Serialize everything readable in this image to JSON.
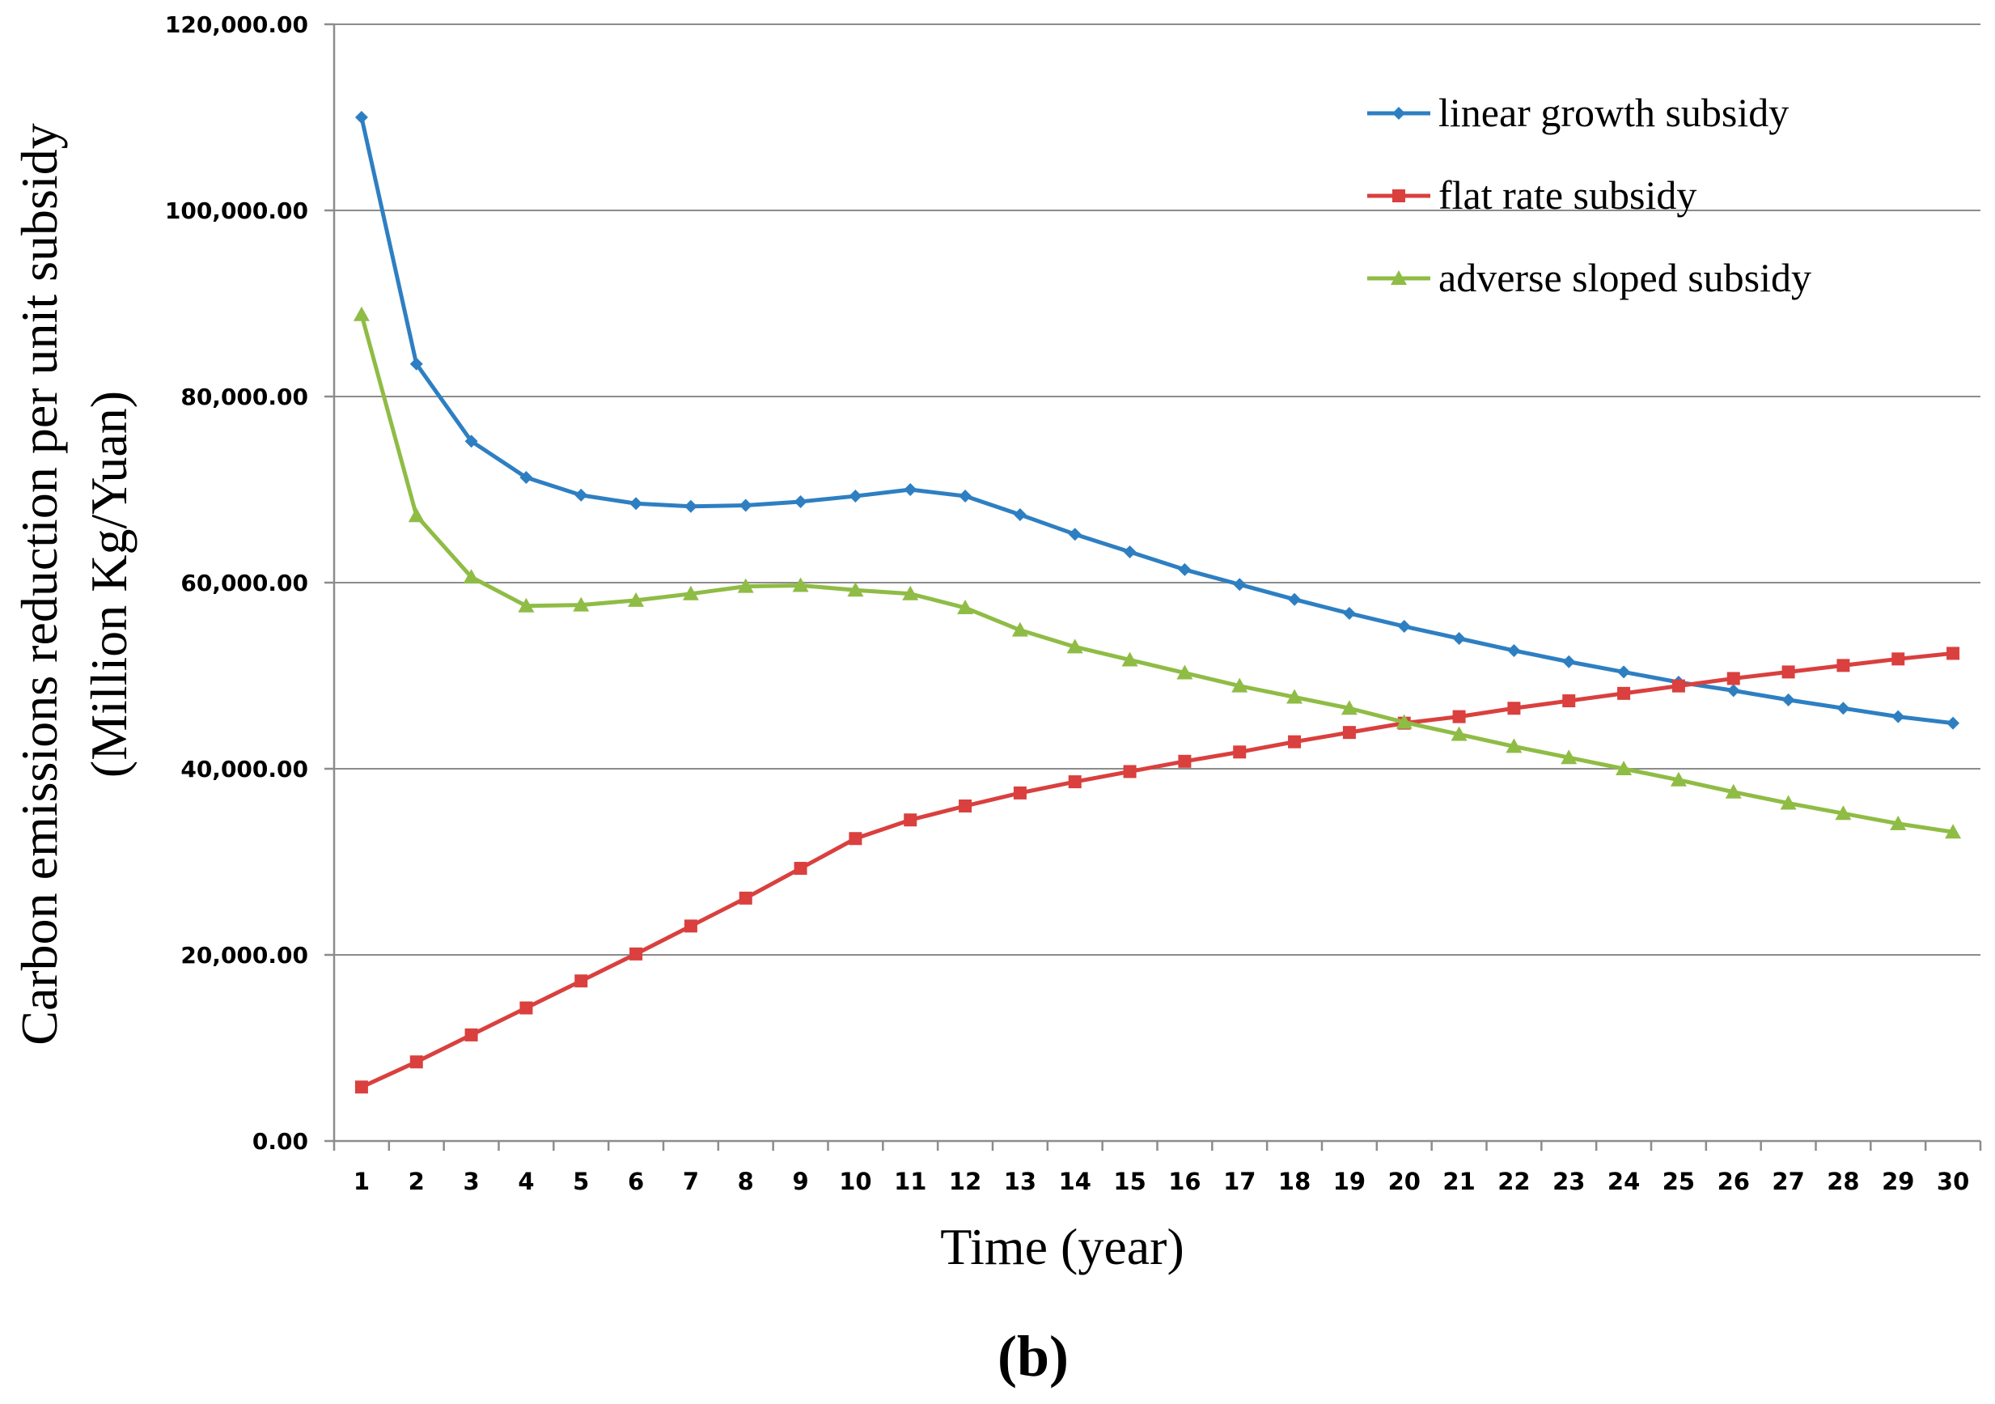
{
  "chart_data": {
    "type": "line",
    "title": "",
    "panel_label": "(b)",
    "xlabel": "Time (year)",
    "ylabel_line1": "Carbon emissions reduction per unit subsidy",
    "ylabel_line2": "(Million Kg/Yuan)",
    "x": [
      1,
      2,
      3,
      4,
      5,
      6,
      7,
      8,
      9,
      10,
      11,
      12,
      13,
      14,
      15,
      16,
      17,
      18,
      19,
      20,
      21,
      22,
      23,
      24,
      25,
      26,
      27,
      28,
      29,
      30
    ],
    "xlim": [
      0.5,
      30.5
    ],
    "ylim": [
      0,
      120000
    ],
    "yticks": [
      0,
      20000,
      40000,
      60000,
      80000,
      100000,
      120000
    ],
    "ytick_labels": [
      "0.00",
      "20,000.00",
      "40,000.00",
      "60,000.00",
      "80,000.00",
      "100,000.00",
      "120,000.00"
    ],
    "grid": "horizontal",
    "legend_position": "top-right",
    "series": [
      {
        "name": "linear growth subsidy",
        "color": "#2e7fc2",
        "marker": "diamond",
        "values": [
          110000,
          83500,
          75200,
          71300,
          69400,
          68500,
          68200,
          68300,
          68700,
          69300,
          70000,
          69300,
          67300,
          65200,
          63300,
          61400,
          59800,
          58200,
          56700,
          55300,
          54000,
          52700,
          51500,
          50400,
          49300,
          48400,
          47400,
          46500,
          45600,
          44900
        ]
      },
      {
        "name": "flat rate subsidy",
        "color": "#d9403e",
        "marker": "square",
        "values": [
          5800,
          8500,
          11400,
          14300,
          17200,
          20100,
          23100,
          26100,
          29300,
          32500,
          34500,
          36000,
          37400,
          38600,
          39700,
          40800,
          41800,
          42900,
          43900,
          44900,
          45600,
          46500,
          47300,
          48100,
          48900,
          49700,
          50400,
          51100,
          51800,
          52400
        ]
      },
      {
        "name": "adverse sloped subsidy",
        "color": "#8fbc45",
        "marker": "triangle",
        "values": [
          88800,
          67200,
          60600,
          57500,
          57600,
          58100,
          58800,
          59600,
          59700,
          59200,
          58800,
          57300,
          54900,
          53100,
          51700,
          50300,
          48900,
          47700,
          46500,
          45000,
          43700,
          42400,
          41200,
          40000,
          38800,
          37500,
          36300,
          35200,
          34100,
          33200
        ]
      }
    ]
  }
}
